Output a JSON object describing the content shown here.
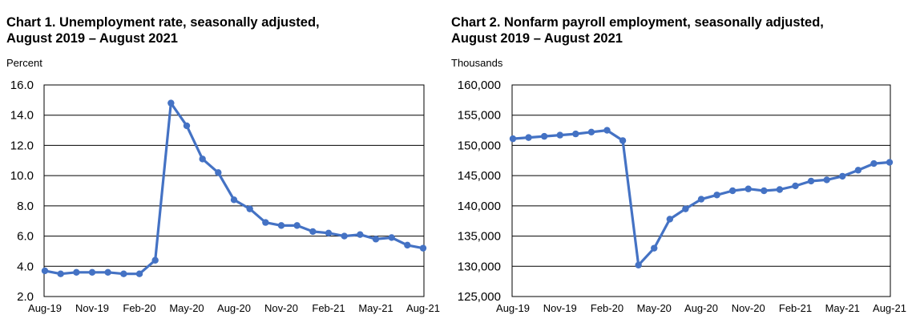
{
  "chart_data": [
    {
      "type": "line",
      "title_line1": "Chart 1. Unemployment rate, seasonally adjusted,",
      "title_line2": "August 2019 – August 2021",
      "ylabel": "Percent",
      "xlabel": "",
      "ylim": [
        2.0,
        16.0
      ],
      "yticks": [
        "2.0",
        "4.0",
        "6.0",
        "8.0",
        "10.0",
        "12.0",
        "14.0",
        "16.0"
      ],
      "xtick_labels": [
        "Aug-19",
        "Nov-19",
        "Feb-20",
        "May-20",
        "Aug-20",
        "Nov-20",
        "Feb-21",
        "May-21",
        "Aug-21"
      ],
      "x": [
        "Aug-19",
        "Sep-19",
        "Oct-19",
        "Nov-19",
        "Dec-19",
        "Jan-20",
        "Feb-20",
        "Mar-20",
        "Apr-20",
        "May-20",
        "Jun-20",
        "Jul-20",
        "Aug-20",
        "Sep-20",
        "Oct-20",
        "Nov-20",
        "Dec-20",
        "Jan-21",
        "Feb-21",
        "Mar-21",
        "Apr-21",
        "May-21",
        "Jun-21",
        "Jul-21",
        "Aug-21"
      ],
      "series": [
        {
          "name": "Unemployment rate",
          "color": "#4472c4",
          "values": [
            3.7,
            3.5,
            3.6,
            3.6,
            3.6,
            3.5,
            3.5,
            4.4,
            14.8,
            13.3,
            11.1,
            10.2,
            8.4,
            7.8,
            6.9,
            6.7,
            6.7,
            6.3,
            6.2,
            6.0,
            6.1,
            5.8,
            5.9,
            5.4,
            5.2
          ]
        }
      ],
      "grid": true
    },
    {
      "type": "line",
      "title_line1": "Chart 2. Nonfarm payroll employment, seasonally adjusted,",
      "title_line2": "August 2019 – August 2021",
      "ylabel": "Thousands",
      "xlabel": "",
      "ylim": [
        125000,
        160000
      ],
      "yticks": [
        "125,000",
        "130,000",
        "135,000",
        "140,000",
        "145,000",
        "150,000",
        "155,000",
        "160,000"
      ],
      "xtick_labels": [
        "Aug-19",
        "Nov-19",
        "Feb-20",
        "May-20",
        "Aug-20",
        "Nov-20",
        "Feb-21",
        "May-21",
        "Aug-21"
      ],
      "x": [
        "Aug-19",
        "Sep-19",
        "Oct-19",
        "Nov-19",
        "Dec-19",
        "Jan-20",
        "Feb-20",
        "Mar-20",
        "Apr-20",
        "May-20",
        "Jun-20",
        "Jul-20",
        "Aug-20",
        "Sep-20",
        "Oct-20",
        "Nov-20",
        "Dec-20",
        "Jan-21",
        "Feb-21",
        "Mar-21",
        "Apr-21",
        "May-21",
        "Jun-21",
        "Jul-21",
        "Aug-21"
      ],
      "series": [
        {
          "name": "Nonfarm payroll employment",
          "color": "#4472c4",
          "values": [
            151100,
            151300,
            151500,
            151700,
            151900,
            152200,
            152500,
            150800,
            130200,
            133000,
            137800,
            139500,
            141100,
            141800,
            142500,
            142800,
            142500,
            142700,
            143300,
            144100,
            144300,
            144900,
            145900,
            147000,
            147200
          ]
        }
      ],
      "grid": true
    }
  ]
}
